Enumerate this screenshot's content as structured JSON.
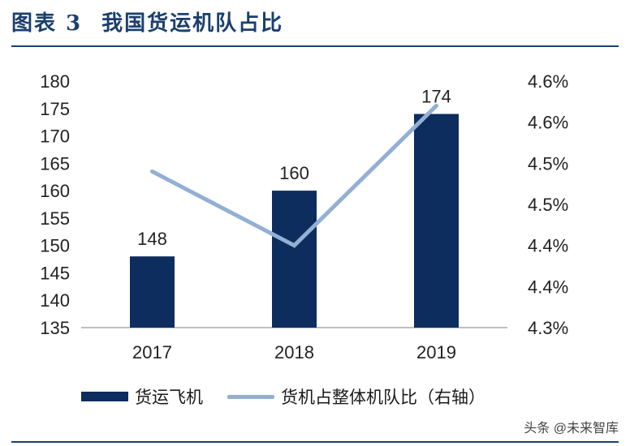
{
  "header": {
    "figure_label": "图表 3",
    "title": "我国货运机队占比"
  },
  "chart_data": {
    "type": "bar",
    "categories": [
      "2017",
      "2018",
      "2019"
    ],
    "series": [
      {
        "name": "货运飞机",
        "type": "bar",
        "axis": "left",
        "values": [
          148,
          160,
          174
        ],
        "color": "#0c2d5e",
        "data_labels": [
          "148",
          "160",
          "174"
        ]
      },
      {
        "name": "货机占整体机队比（右轴）",
        "type": "line",
        "axis": "right",
        "values": [
          4.49,
          4.4,
          4.57
        ],
        "color": "#93afd4"
      }
    ],
    "left_axis": {
      "ylim": [
        135,
        180
      ],
      "ticks": [
        "135",
        "140",
        "145",
        "150",
        "155",
        "160",
        "165",
        "170",
        "175",
        "180"
      ]
    },
    "right_axis": {
      "ylim": [
        4.3,
        4.6
      ],
      "ticks": [
        "4.3%",
        "4.4%",
        "4.4%",
        "4.5%",
        "4.5%",
        "4.6%",
        "4.6%"
      ]
    },
    "grid": false,
    "legend_position": "bottom"
  },
  "legend": {
    "bar_label": "货运飞机",
    "line_label": "货机占整体机队比（右轴）"
  },
  "watermark": "头条 @未来智库"
}
